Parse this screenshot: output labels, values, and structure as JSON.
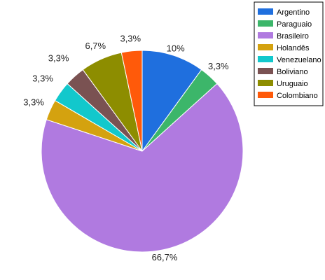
{
  "chart_data": {
    "type": "pie",
    "title": "",
    "legend_position": "top-right",
    "slices": [
      {
        "label": "Argentino",
        "value": 10,
        "display": "10%",
        "color": "#1f6fde"
      },
      {
        "label": "Paraguaio",
        "value": 3.3,
        "display": "3,3%",
        "color": "#3cb66a"
      },
      {
        "label": "Brasileiro",
        "value": 66.7,
        "display": "66,7%",
        "color": "#b07ae0"
      },
      {
        "label": "Holandês",
        "value": 3.3,
        "display": "3,3%",
        "color": "#d4a20f"
      },
      {
        "label": "Venezuelano",
        "value": 3.3,
        "display": "3,3%",
        "color": "#12c8cc"
      },
      {
        "label": "Boliviano",
        "value": 3.3,
        "display": "3,3%",
        "color": "#7a5252"
      },
      {
        "label": "Uruguaio",
        "value": 6.7,
        "display": "6,7%",
        "color": "#8d8d00"
      },
      {
        "label": "Colombiano",
        "value": 3.3,
        "display": "3,3%",
        "color": "#ff5a0a"
      }
    ]
  }
}
